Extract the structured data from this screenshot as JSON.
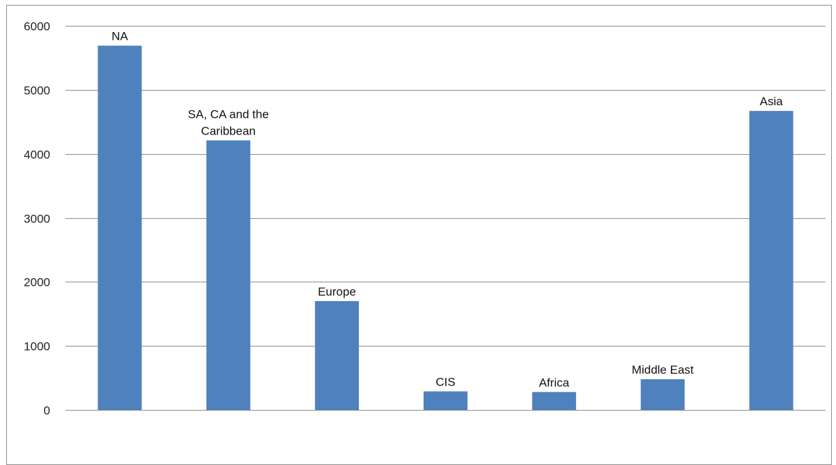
{
  "chart_data": {
    "type": "bar",
    "categories": [
      "NA",
      "SA, CA and the Caribbean",
      "Europe",
      "CIS",
      "Africa",
      "Middle East",
      "Asia"
    ],
    "data_labels": [
      [
        "NA"
      ],
      [
        "SA, CA and the",
        "Caribbean"
      ],
      [
        "Europe"
      ],
      [
        "CIS"
      ],
      [
        "Africa"
      ],
      [
        "Middle East"
      ],
      [
        "Asia"
      ]
    ],
    "values": [
      5690,
      4210,
      1700,
      290,
      280,
      480,
      4670
    ],
    "ylim": [
      0,
      6000
    ],
    "y_ticks": [
      0,
      1000,
      2000,
      3000,
      4000,
      5000,
      6000
    ],
    "grid": true,
    "legend": "none",
    "bar_color": "#4f81bd",
    "grid_color": "#8c8c8c"
  }
}
